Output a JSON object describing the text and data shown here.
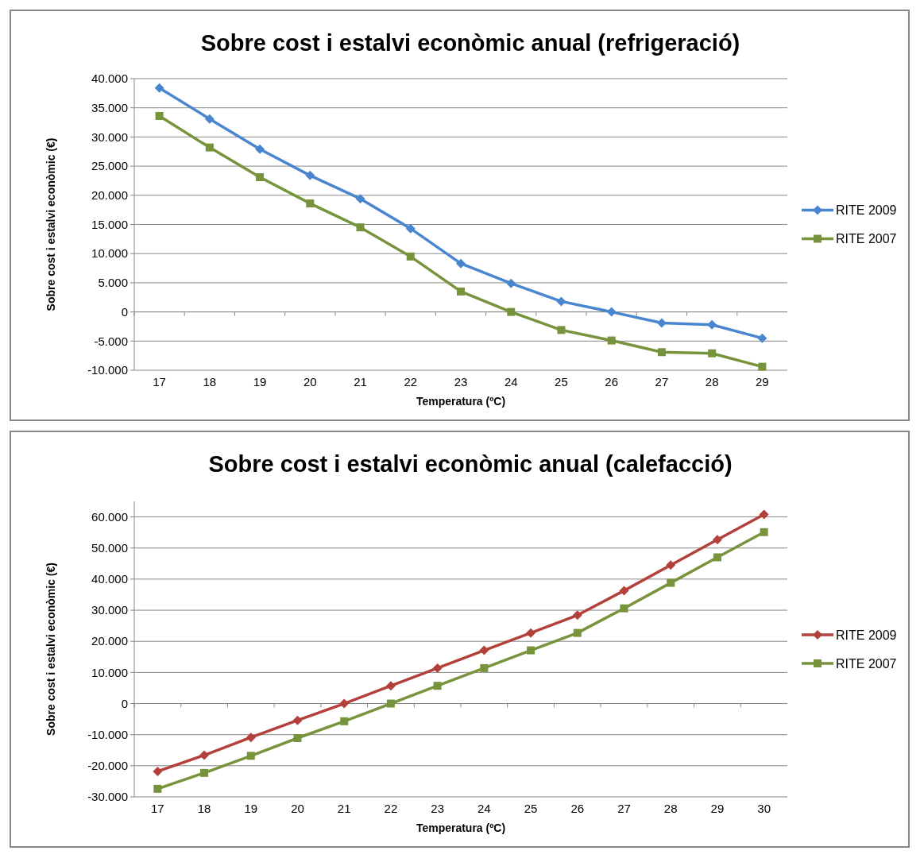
{
  "chart_data": [
    {
      "type": "line",
      "title": "Sobre cost i estalvi econòmic anual (refrigeració)",
      "xlabel": "Temperatura (ºC)",
      "ylabel": "Sobre cost i estalvi econòmic (€)",
      "categories": [
        "17",
        "18",
        "19",
        "20",
        "21",
        "22",
        "23",
        "24",
        "25",
        "26",
        "27",
        "28",
        "29"
      ],
      "ylim": [
        -10000,
        40000
      ],
      "yticks": [
        {
          "value": -10000,
          "label": "-10.000"
        },
        {
          "value": -5000,
          "label": "-5.000"
        },
        {
          "value": 0,
          "label": "0"
        },
        {
          "value": 5000,
          "label": "5.000"
        },
        {
          "value": 10000,
          "label": "10.000"
        },
        {
          "value": 15000,
          "label": "15.000"
        },
        {
          "value": 20000,
          "label": "20.000"
        },
        {
          "value": 25000,
          "label": "25.000"
        },
        {
          "value": 30000,
          "label": "30.000"
        },
        {
          "value": 35000,
          "label": "35.000"
        },
        {
          "value": 40000,
          "label": "40.000"
        }
      ],
      "grid": "y",
      "legend": "right",
      "series": [
        {
          "name": "RITE 2009",
          "color": "#4a86d0",
          "marker": "diamond",
          "values": [
            38400,
            33100,
            27900,
            23400,
            19400,
            14300,
            8300,
            4900,
            1800,
            0,
            -1900,
            -2200,
            -4500
          ]
        },
        {
          "name": "RITE 2007",
          "color": "#77933c",
          "marker": "square",
          "values": [
            33600,
            28200,
            23100,
            18600,
            14500,
            9500,
            3500,
            0,
            -3100,
            -4900,
            -6900,
            -7100,
            -9400
          ]
        }
      ]
    },
    {
      "type": "line",
      "title": "Sobre cost i estalvi econòmic anual (calefacció)",
      "xlabel": "Temperatura (ºC)",
      "ylabel": "Sobre cost i estalvi econòmic (€)",
      "categories": [
        "17",
        "18",
        "19",
        "20",
        "21",
        "22",
        "23",
        "24",
        "25",
        "26",
        "27",
        "28",
        "29",
        "30"
      ],
      "ylim": [
        -30000,
        65000
      ],
      "yticks": [
        {
          "value": -30000,
          "label": "-30.000"
        },
        {
          "value": -20000,
          "label": "-20.000"
        },
        {
          "value": -10000,
          "label": "-10.000"
        },
        {
          "value": 0,
          "label": "0"
        },
        {
          "value": 10000,
          "label": "10.000"
        },
        {
          "value": 20000,
          "label": "20.000"
        },
        {
          "value": 30000,
          "label": "30.000"
        },
        {
          "value": 40000,
          "label": "40.000"
        },
        {
          "value": 50000,
          "label": "50.000"
        },
        {
          "value": 60000,
          "label": "60.000"
        }
      ],
      "grid": "y",
      "legend": "right",
      "series": [
        {
          "name": "RITE 2009",
          "color": "#b3403a",
          "marker": "diamond",
          "values": [
            -21800,
            -16600,
            -10900,
            -5400,
            0,
            5700,
            11400,
            17100,
            22700,
            28400,
            36300,
            44500,
            52700,
            60800
          ]
        },
        {
          "name": "RITE 2007",
          "color": "#77933c",
          "marker": "square",
          "values": [
            -27400,
            -22300,
            -16800,
            -11100,
            -5700,
            0,
            5700,
            11400,
            17100,
            22700,
            30600,
            38800,
            47000,
            55100
          ]
        }
      ]
    }
  ]
}
